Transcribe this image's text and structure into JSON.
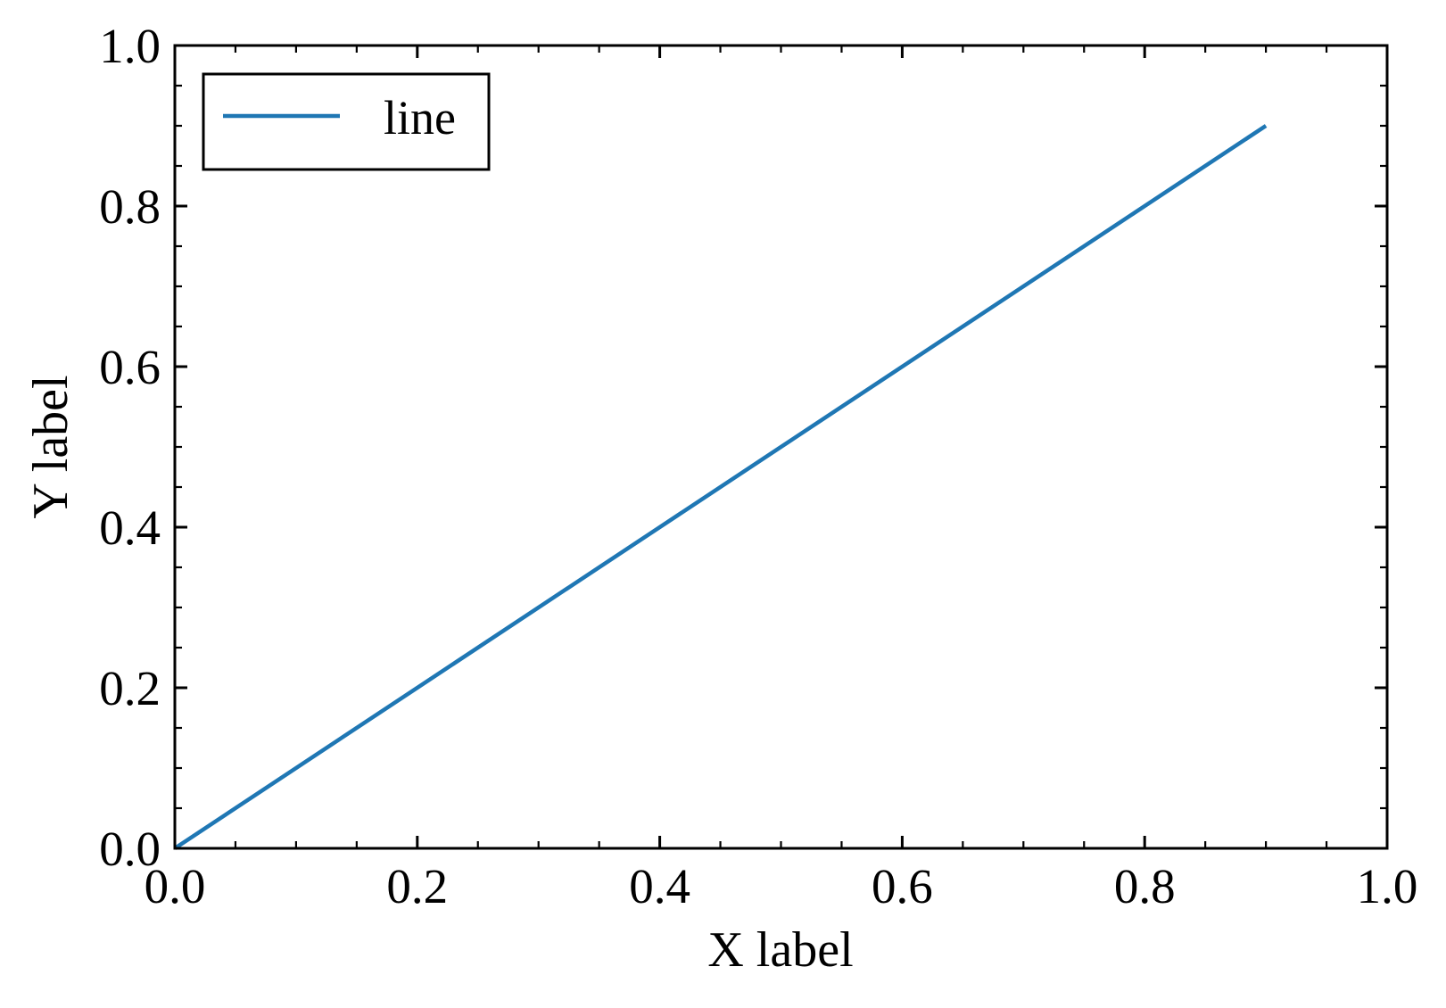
{
  "chart_data": {
    "type": "line",
    "title": "",
    "xlabel": "X label",
    "ylabel": "Y label",
    "xlim": [
      0.0,
      1.0
    ],
    "ylim": [
      0.0,
      1.0
    ],
    "grid": false,
    "legend_position": "upper left",
    "x_ticks": [
      "0.0",
      "0.2",
      "0.4",
      "0.6",
      "0.8",
      "1.0"
    ],
    "y_ticks": [
      "0.0",
      "0.2",
      "0.4",
      "0.6",
      "0.8",
      "1.0"
    ],
    "minor_ticks_per_interval": 3,
    "series": [
      {
        "name": "line",
        "color": "#1f77b4",
        "x": [
          0.0,
          0.1,
          0.2,
          0.3,
          0.4,
          0.5,
          0.6,
          0.7,
          0.8,
          0.9
        ],
        "y": [
          0.0,
          0.1,
          0.2,
          0.3,
          0.4,
          0.5,
          0.6,
          0.7,
          0.8,
          0.9
        ]
      }
    ]
  },
  "legend": {
    "entries": [
      {
        "label": "line",
        "color": "#1f77b4"
      }
    ]
  },
  "axes": {
    "xlabel": "X label",
    "ylabel": "Y label"
  }
}
